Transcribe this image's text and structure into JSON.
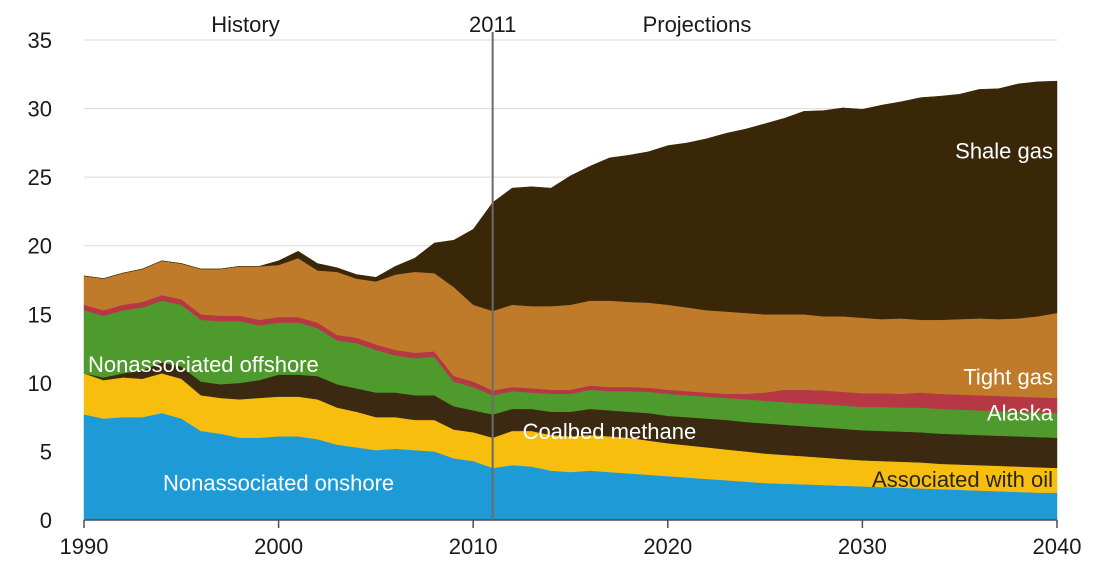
{
  "chart_data": {
    "type": "area",
    "stacked": true,
    "x_ticks": [
      1990,
      2000,
      2010,
      2020,
      2030,
      2040
    ],
    "y_ticks": [
      0,
      5,
      10,
      15,
      20,
      25,
      30,
      35
    ],
    "xlim": [
      1990,
      2040
    ],
    "ylim": [
      0,
      35
    ],
    "grid": "horizontal",
    "legend": "none",
    "annotations": {
      "divider_year": 2011,
      "divider_label": "2011",
      "history_label": "History",
      "projections_label": "Projections"
    },
    "x": [
      1990,
      1991,
      1992,
      1993,
      1994,
      1995,
      1996,
      1997,
      1998,
      1999,
      2000,
      2001,
      2002,
      2003,
      2004,
      2005,
      2006,
      2007,
      2008,
      2009,
      2010,
      2011,
      2012,
      2013,
      2014,
      2015,
      2016,
      2017,
      2018,
      2019,
      2020,
      2021,
      2022,
      2023,
      2024,
      2025,
      2026,
      2027,
      2028,
      2029,
      2030,
      2031,
      2032,
      2033,
      2034,
      2035,
      2036,
      2037,
      2038,
      2039,
      2040
    ],
    "series": [
      {
        "name": "Nonassociated onshore",
        "color": "#1E9BD7",
        "label_color": "#ffffff",
        "values": [
          7.7,
          7.4,
          7.5,
          7.5,
          7.8,
          7.4,
          6.5,
          6.3,
          6.0,
          6.0,
          6.1,
          6.1,
          5.9,
          5.5,
          5.3,
          5.1,
          5.2,
          5.1,
          5.0,
          4.5,
          4.3,
          3.8,
          4.0,
          3.9,
          3.6,
          3.5,
          3.6,
          3.5,
          3.4,
          3.3,
          3.2,
          3.1,
          3.0,
          2.9,
          2.8,
          2.7,
          2.65,
          2.6,
          2.55,
          2.5,
          2.45,
          2.4,
          2.35,
          2.3,
          2.25,
          2.2,
          2.15,
          2.1,
          2.05,
          2.0,
          2.0
        ]
      },
      {
        "name": "Associated with oil",
        "color": "#F7BE0E",
        "label_color": "#2b2418",
        "values": [
          3.0,
          2.8,
          2.9,
          2.8,
          2.9,
          2.9,
          2.6,
          2.6,
          2.8,
          2.9,
          2.9,
          2.9,
          2.9,
          2.7,
          2.6,
          2.4,
          2.3,
          2.2,
          2.3,
          2.1,
          2.1,
          2.2,
          2.5,
          2.6,
          2.6,
          2.6,
          2.6,
          2.6,
          2.6,
          2.5,
          2.4,
          2.35,
          2.3,
          2.25,
          2.2,
          2.15,
          2.1,
          2.05,
          2.0,
          1.95,
          1.9,
          1.9,
          1.9,
          1.9,
          1.85,
          1.85,
          1.85,
          1.85,
          1.85,
          1.85,
          1.8
        ]
      },
      {
        "name": "Coalbed methane",
        "color": "#3B2A11",
        "label_color": "#ffffff",
        "values": [
          0.0,
          0.2,
          0.3,
          0.6,
          0.8,
          0.9,
          1.0,
          1.0,
          1.2,
          1.3,
          1.6,
          1.6,
          1.7,
          1.7,
          1.7,
          1.8,
          1.8,
          1.8,
          1.8,
          1.7,
          1.6,
          1.7,
          1.6,
          1.6,
          1.7,
          1.8,
          1.9,
          1.9,
          1.9,
          2.0,
          2.0,
          2.05,
          2.1,
          2.15,
          2.15,
          2.2,
          2.2,
          2.2,
          2.2,
          2.2,
          2.2,
          2.2,
          2.2,
          2.2,
          2.2,
          2.2,
          2.2,
          2.2,
          2.2,
          2.2,
          2.2
        ]
      },
      {
        "name": "Nonassociated offshore",
        "color": "#4E9A2C",
        "label_color": "#ffffff",
        "values": [
          4.6,
          4.5,
          4.6,
          4.6,
          4.5,
          4.5,
          4.5,
          4.6,
          4.5,
          4.0,
          3.8,
          3.8,
          3.5,
          3.2,
          3.3,
          3.1,
          2.7,
          2.7,
          2.8,
          1.8,
          1.7,
          1.4,
          1.3,
          1.2,
          1.3,
          1.3,
          1.4,
          1.4,
          1.5,
          1.55,
          1.6,
          1.6,
          1.6,
          1.6,
          1.65,
          1.65,
          1.65,
          1.65,
          1.7,
          1.7,
          1.7,
          1.75,
          1.75,
          1.8,
          1.8,
          1.8,
          1.8,
          1.8,
          1.8,
          1.8,
          1.8
        ]
      },
      {
        "name": "Alaska",
        "color": "#B63845",
        "label_color": "#ffffff",
        "values": [
          0.4,
          0.4,
          0.4,
          0.4,
          0.4,
          0.4,
          0.4,
          0.4,
          0.4,
          0.4,
          0.4,
          0.4,
          0.4,
          0.4,
          0.4,
          0.4,
          0.4,
          0.4,
          0.4,
          0.4,
          0.4,
          0.35,
          0.3,
          0.3,
          0.3,
          0.3,
          0.3,
          0.3,
          0.3,
          0.3,
          0.3,
          0.3,
          0.3,
          0.3,
          0.4,
          0.6,
          0.9,
          1.0,
          1.0,
          1.0,
          1.0,
          1.0,
          1.0,
          1.1,
          1.1,
          1.1,
          1.1,
          1.1,
          1.1,
          1.1,
          1.1
        ]
      },
      {
        "name": "Tight gas",
        "color": "#BF7A2A",
        "label_color": "#ffffff",
        "values": [
          2.1,
          2.3,
          2.3,
          2.4,
          2.5,
          2.6,
          3.3,
          3.4,
          3.6,
          3.9,
          3.8,
          4.3,
          3.8,
          4.6,
          4.3,
          4.6,
          5.5,
          5.9,
          5.7,
          6.5,
          5.6,
          5.8,
          6.0,
          6.0,
          6.1,
          6.2,
          6.2,
          6.3,
          6.2,
          6.2,
          6.2,
          6.1,
          6.0,
          6.0,
          5.9,
          5.7,
          5.5,
          5.5,
          5.4,
          5.5,
          5.5,
          5.4,
          5.5,
          5.3,
          5.4,
          5.5,
          5.6,
          5.6,
          5.7,
          5.9,
          6.2
        ]
      },
      {
        "name": "Shale gas",
        "color": "#3A2708",
        "label_color": "#ffffff",
        "values": [
          0.0,
          0.0,
          0.0,
          0.0,
          0.0,
          0.0,
          0.0,
          0.0,
          0.0,
          0.0,
          0.3,
          0.5,
          0.5,
          0.3,
          0.3,
          0.3,
          0.6,
          1.0,
          2.2,
          3.4,
          5.5,
          7.9,
          8.5,
          8.7,
          8.6,
          9.4,
          9.8,
          10.4,
          10.7,
          11.0,
          11.6,
          12.0,
          12.5,
          13.0,
          13.4,
          13.9,
          14.3,
          14.8,
          15.0,
          15.2,
          15.2,
          15.6,
          15.8,
          16.2,
          16.3,
          16.4,
          16.7,
          16.8,
          17.1,
          17.1,
          16.9
        ]
      }
    ]
  }
}
